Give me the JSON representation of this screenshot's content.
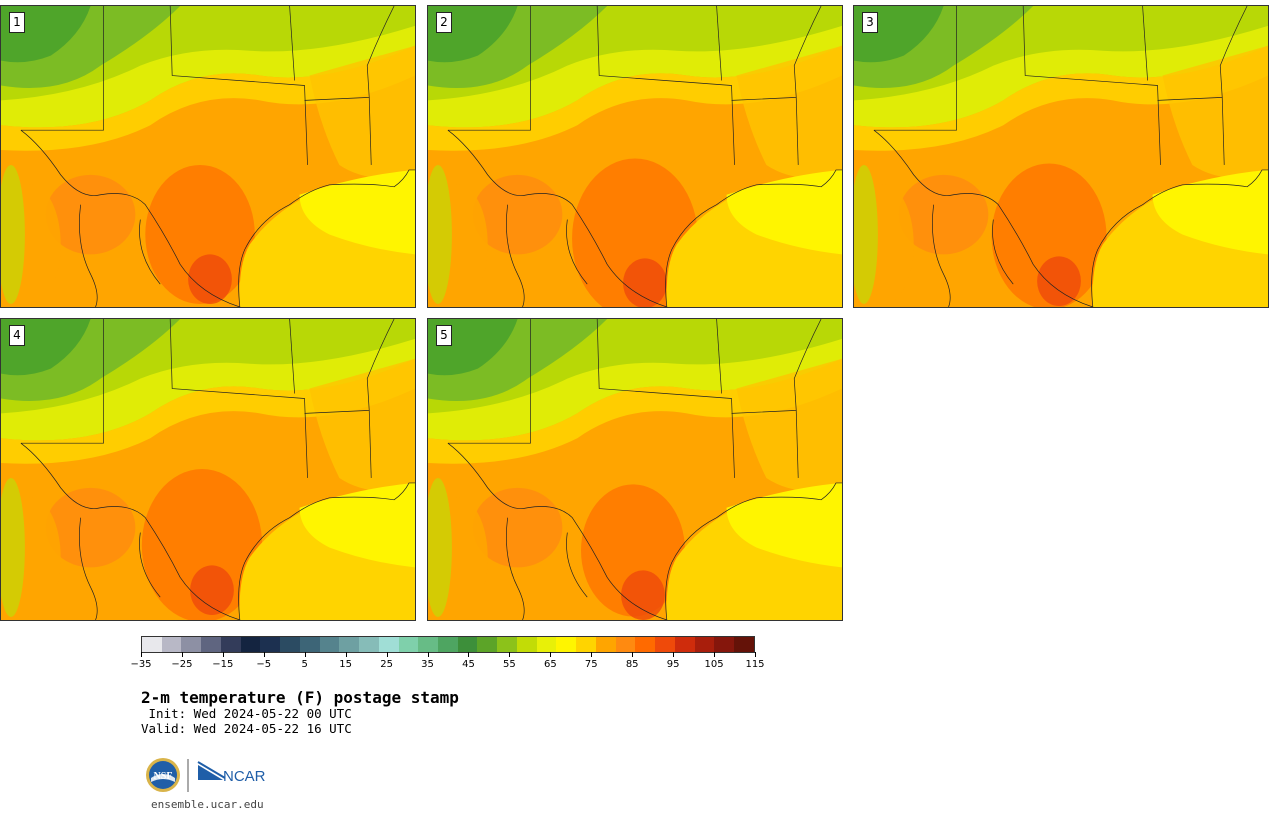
{
  "panels": [
    {
      "label": "1"
    },
    {
      "label": "2"
    },
    {
      "label": "3"
    },
    {
      "label": "4"
    },
    {
      "label": "5"
    }
  ],
  "colorbar": {
    "colors": [
      "#e8e8ec",
      "#b8b8c6",
      "#8d90a4",
      "#5f6580",
      "#333c5a",
      "#142440",
      "#1c3050",
      "#2b4b62",
      "#3d6577",
      "#55838d",
      "#6ea0a2",
      "#86bcb8",
      "#a0ded6",
      "#7fd0ab",
      "#67bc86",
      "#4ea561",
      "#3d8f3a",
      "#5ca428",
      "#8cc21a",
      "#c2dc06",
      "#e8f008",
      "#fff500",
      "#ffd400",
      "#ffa500",
      "#ff8a10",
      "#ff6a00",
      "#ef4a0a",
      "#cf2c0c",
      "#a81e0c",
      "#85160c",
      "#641208"
    ],
    "tick_labels": [
      "−35",
      "−25",
      "−15",
      "−5",
      "5",
      "15",
      "25",
      "35",
      "45",
      "55",
      "65",
      "75",
      "85",
      "95",
      "105",
      "115"
    ]
  },
  "title": "2-m temperature (F) postage stamp",
  "init_text": " Init: Wed 2024-05-22 00 UTC",
  "valid_text": "Valid: Wed 2024-05-22 16 UTC",
  "logos": {
    "left": "NSF",
    "right": "NCAR"
  },
  "footer_url": "ensemble.ucar.edu"
}
